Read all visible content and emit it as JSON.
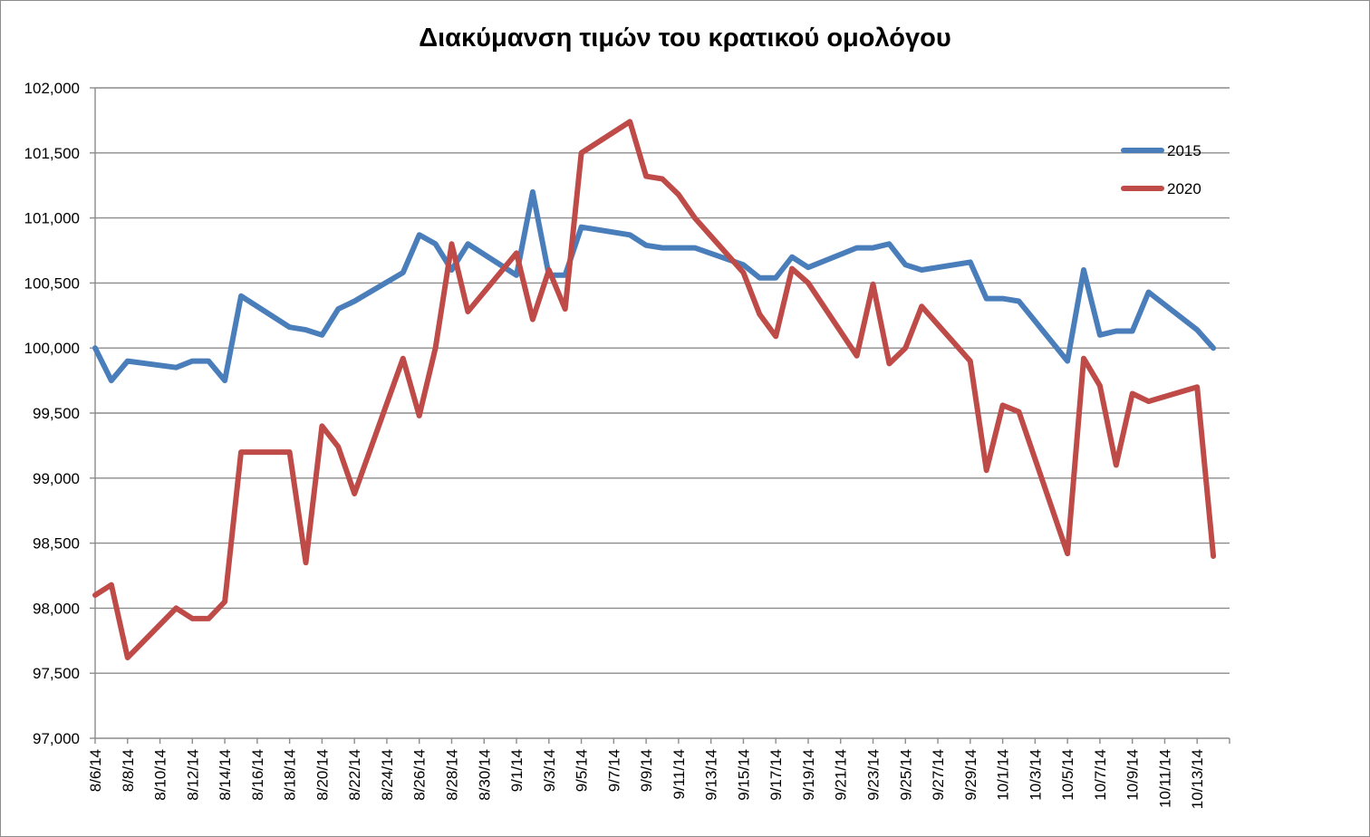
{
  "chart_data": {
    "type": "line",
    "title": "Διακύμανση τιμών του κρατικού ομολόγου",
    "xlabel": "",
    "ylabel": "",
    "ylim": [
      97000,
      102000
    ],
    "ytick_values": [
      97000,
      97500,
      98000,
      98500,
      99000,
      99500,
      100000,
      100500,
      101000,
      101500,
      102000
    ],
    "ytick_labels": [
      "97,000",
      "97,500",
      "98,000",
      "98,500",
      "99,000",
      "99,500",
      "100,000",
      "100,500",
      "101,000",
      "101,500",
      "102,000"
    ],
    "xlim": [
      "2014-08-06",
      "2014-10-15"
    ],
    "xtick_dates": [
      "2014-08-06",
      "2014-08-08",
      "2014-08-10",
      "2014-08-12",
      "2014-08-14",
      "2014-08-16",
      "2014-08-18",
      "2014-08-20",
      "2014-08-22",
      "2014-08-24",
      "2014-08-26",
      "2014-08-28",
      "2014-08-30",
      "2014-09-01",
      "2014-09-03",
      "2014-09-05",
      "2014-09-07",
      "2014-09-09",
      "2014-09-11",
      "2014-09-13",
      "2014-09-15",
      "2014-09-17",
      "2014-09-19",
      "2014-09-21",
      "2014-09-23",
      "2014-09-25",
      "2014-09-27",
      "2014-09-29",
      "2014-10-01",
      "2014-10-03",
      "2014-10-05",
      "2014-10-07",
      "2014-10-09",
      "2014-10-11",
      "2014-10-13"
    ],
    "xtick_labels": [
      "8/6/14",
      "8/8/14",
      "8/10/14",
      "8/12/14",
      "8/14/14",
      "8/16/14",
      "8/18/14",
      "8/20/14",
      "8/22/14",
      "8/24/14",
      "8/26/14",
      "8/28/14",
      "8/30/14",
      "9/1/14",
      "9/3/14",
      "9/5/14",
      "9/7/14",
      "9/9/14",
      "9/11/14",
      "9/13/14",
      "9/15/14",
      "9/17/14",
      "9/19/14",
      "9/21/14",
      "9/23/14",
      "9/25/14",
      "9/27/14",
      "9/29/14",
      "10/1/14",
      "10/3/14",
      "10/5/14",
      "10/7/14",
      "10/9/14",
      "10/11/14",
      "10/13/14"
    ],
    "grid": "horizontal",
    "legend_position": "top-right",
    "series": [
      {
        "name": "2015",
        "color": "#4a7ebb",
        "points": [
          [
            "2014-08-06",
            100000
          ],
          [
            "2014-08-07",
            99750
          ],
          [
            "2014-08-08",
            99900
          ],
          [
            "2014-08-11",
            99850
          ],
          [
            "2014-08-12",
            99900
          ],
          [
            "2014-08-13",
            99900
          ],
          [
            "2014-08-14",
            99750
          ],
          [
            "2014-08-15",
            100400
          ],
          [
            "2014-08-18",
            100160
          ],
          [
            "2014-08-19",
            100140
          ],
          [
            "2014-08-20",
            100100
          ],
          [
            "2014-08-21",
            100300
          ],
          [
            "2014-08-22",
            100360
          ],
          [
            "2014-08-25",
            100580
          ],
          [
            "2014-08-26",
            100870
          ],
          [
            "2014-08-27",
            100800
          ],
          [
            "2014-08-28",
            100600
          ],
          [
            "2014-08-29",
            100800
          ],
          [
            "2014-09-01",
            100560
          ],
          [
            "2014-09-02",
            101200
          ],
          [
            "2014-09-03",
            100560
          ],
          [
            "2014-09-04",
            100560
          ],
          [
            "2014-09-05",
            100930
          ],
          [
            "2014-09-08",
            100870
          ],
          [
            "2014-09-09",
            100790
          ],
          [
            "2014-09-10",
            100770
          ],
          [
            "2014-09-11",
            100770
          ],
          [
            "2014-09-12",
            100770
          ],
          [
            "2014-09-15",
            100640
          ],
          [
            "2014-09-16",
            100540
          ],
          [
            "2014-09-17",
            100540
          ],
          [
            "2014-09-18",
            100700
          ],
          [
            "2014-09-19",
            100620
          ],
          [
            "2014-09-22",
            100770
          ],
          [
            "2014-09-23",
            100770
          ],
          [
            "2014-09-24",
            100800
          ],
          [
            "2014-09-25",
            100640
          ],
          [
            "2014-09-26",
            100600
          ],
          [
            "2014-09-29",
            100660
          ],
          [
            "2014-09-30",
            100380
          ],
          [
            "2014-10-01",
            100380
          ],
          [
            "2014-10-02",
            100360
          ],
          [
            "2014-10-05",
            99900
          ],
          [
            "2014-10-06",
            100600
          ],
          [
            "2014-10-07",
            100100
          ],
          [
            "2014-10-08",
            100130
          ],
          [
            "2014-10-09",
            100130
          ],
          [
            "2014-10-10",
            100430
          ],
          [
            "2014-10-13",
            100140
          ],
          [
            "2014-10-14",
            100000
          ]
        ]
      },
      {
        "name": "2020",
        "color": "#be4b48",
        "points": [
          [
            "2014-08-06",
            98100
          ],
          [
            "2014-08-07",
            98180
          ],
          [
            "2014-08-08",
            97620
          ],
          [
            "2014-08-11",
            98000
          ],
          [
            "2014-08-12",
            97920
          ],
          [
            "2014-08-13",
            97920
          ],
          [
            "2014-08-14",
            98050
          ],
          [
            "2014-08-15",
            99200
          ],
          [
            "2014-08-18",
            99200
          ],
          [
            "2014-08-19",
            98350
          ],
          [
            "2014-08-20",
            99400
          ],
          [
            "2014-08-21",
            99240
          ],
          [
            "2014-08-22",
            98880
          ],
          [
            "2014-08-25",
            99920
          ],
          [
            "2014-08-26",
            99480
          ],
          [
            "2014-08-27",
            100000
          ],
          [
            "2014-08-28",
            100800
          ],
          [
            "2014-08-29",
            100280
          ],
          [
            "2014-09-01",
            100730
          ],
          [
            "2014-09-02",
            100220
          ],
          [
            "2014-09-03",
            100600
          ],
          [
            "2014-09-04",
            100300
          ],
          [
            "2014-09-05",
            101500
          ],
          [
            "2014-09-08",
            101740
          ],
          [
            "2014-09-09",
            101320
          ],
          [
            "2014-09-10",
            101300
          ],
          [
            "2014-09-11",
            101180
          ],
          [
            "2014-09-12",
            101000
          ],
          [
            "2014-09-15",
            100580
          ],
          [
            "2014-09-16",
            100260
          ],
          [
            "2014-09-17",
            100090
          ],
          [
            "2014-09-18",
            100610
          ],
          [
            "2014-09-19",
            100500
          ],
          [
            "2014-09-22",
            99940
          ],
          [
            "2014-09-23",
            100490
          ],
          [
            "2014-09-24",
            99880
          ],
          [
            "2014-09-25",
            100000
          ],
          [
            "2014-09-26",
            100320
          ],
          [
            "2014-09-29",
            99900
          ],
          [
            "2014-09-30",
            99060
          ],
          [
            "2014-10-01",
            99560
          ],
          [
            "2014-10-02",
            99510
          ],
          [
            "2014-10-05",
            98420
          ],
          [
            "2014-10-06",
            99920
          ],
          [
            "2014-10-07",
            99710
          ],
          [
            "2014-10-08",
            99100
          ],
          [
            "2014-10-09",
            99650
          ],
          [
            "2014-10-10",
            99590
          ],
          [
            "2014-10-13",
            99700
          ],
          [
            "2014-10-14",
            98400
          ]
        ]
      }
    ]
  }
}
